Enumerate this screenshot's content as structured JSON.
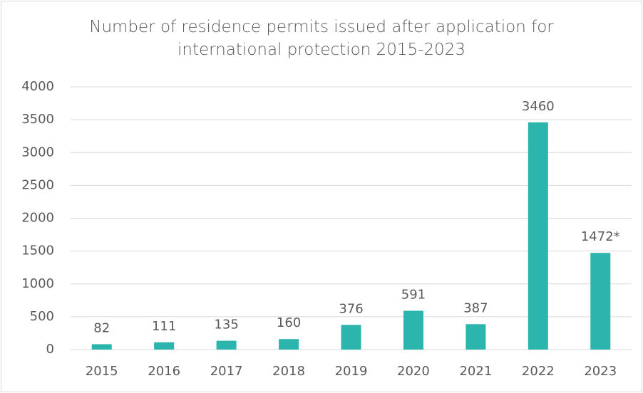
{
  "chart_data": {
    "type": "bar",
    "title": "Number of residence permits issued after application for international protection 2015-2023",
    "categories": [
      "2015",
      "2016",
      "2017",
      "2018",
      "2019",
      "2020",
      "2021",
      "2022",
      "2023"
    ],
    "values": [
      82,
      111,
      135,
      160,
      376,
      591,
      387,
      3460,
      1472
    ],
    "value_labels": [
      "82",
      "111",
      "135",
      "160",
      "376",
      "591",
      "387",
      "3460",
      "1472*"
    ],
    "color": "#2bb5ad",
    "ylim": [
      0,
      4000
    ],
    "yticks": [
      0,
      500,
      1000,
      1500,
      2000,
      2500,
      3000,
      3500,
      4000
    ],
    "grid": true
  }
}
